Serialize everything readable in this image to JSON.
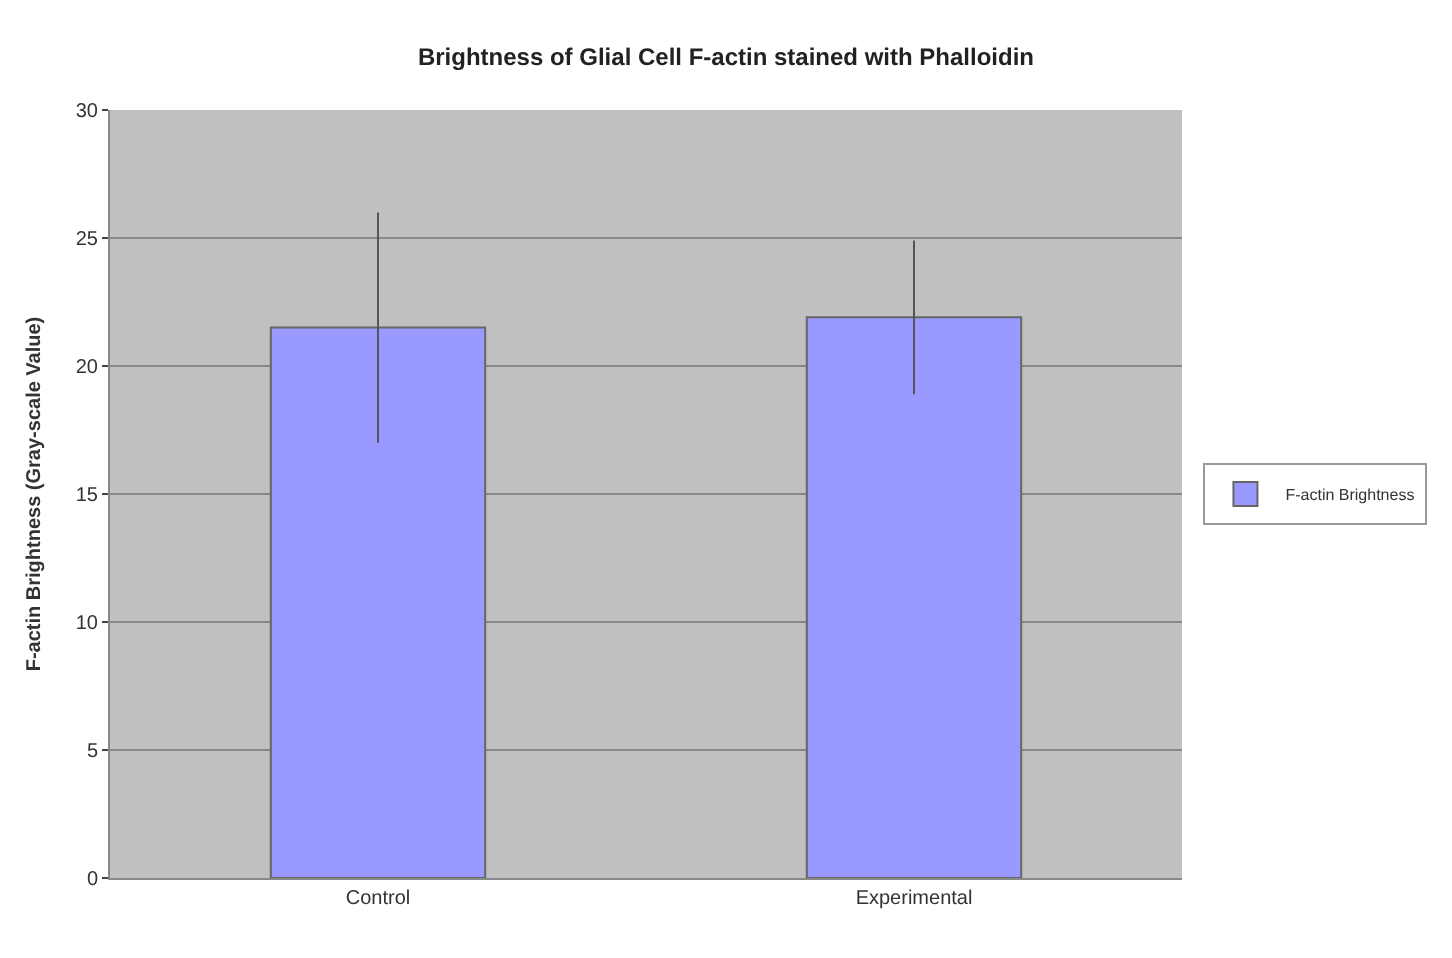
{
  "chart_data": {
    "type": "bar",
    "title": "Brightness of Glial Cell F-actin stained with Phalloidin",
    "ylabel": "F-actin Brightness (Gray-scale Value)",
    "categories": [
      "Control",
      "Experimental"
    ],
    "series": [
      {
        "name": "F-actin Brightness",
        "color": "#9999ff",
        "values": [
          21.5,
          21.9
        ],
        "errors": [
          4.5,
          3
        ]
      }
    ],
    "ylim": [
      0,
      30
    ],
    "yticks": [
      0,
      5,
      10,
      15,
      20,
      25,
      30
    ],
    "grid": "y",
    "legend": "right"
  }
}
